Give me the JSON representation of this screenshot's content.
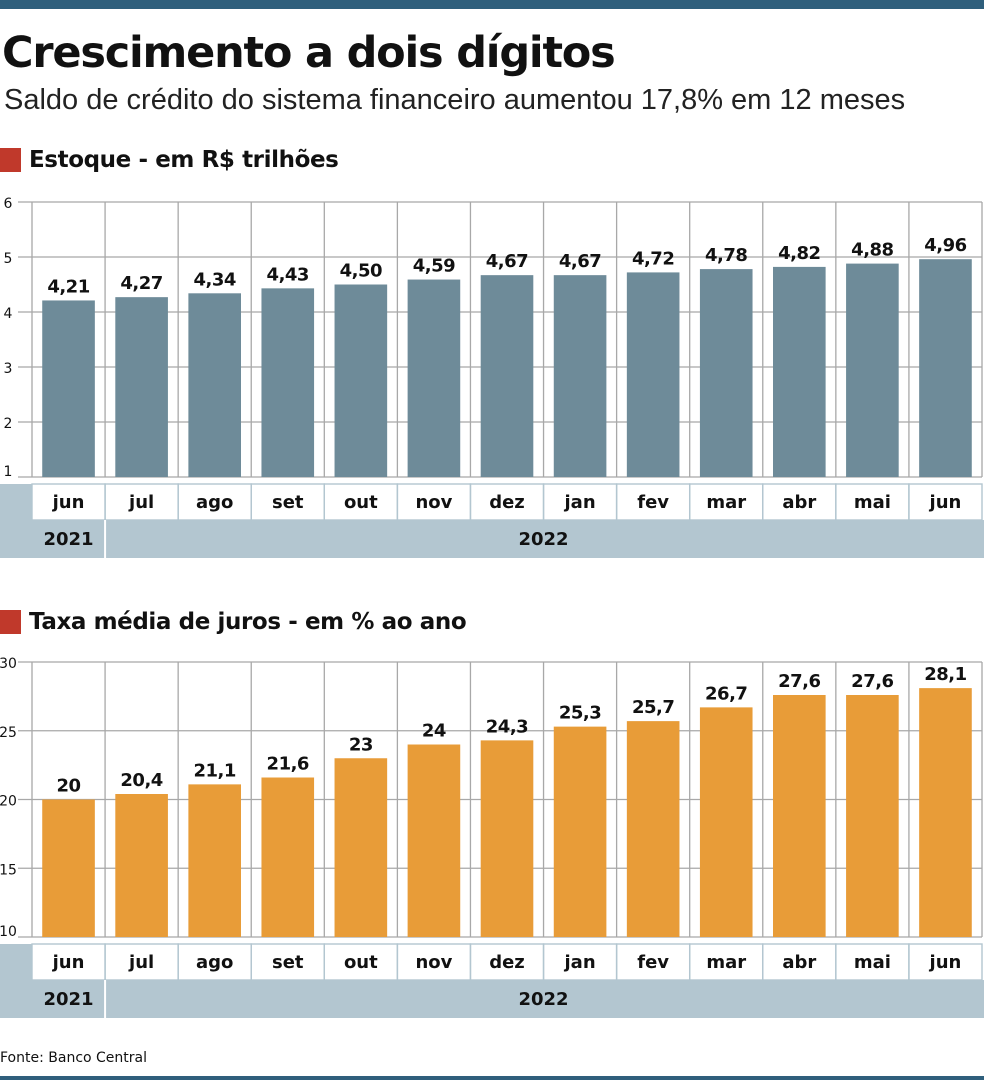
{
  "title": "Crescimento a dois dígitos",
  "subtitle": "Saldo de crédito do sistema financeiro aumentou 17,8% em 12 meses",
  "source": "Fonte: Banco Central",
  "colors": {
    "rule": "#2f5f7c",
    "marker": "#c0392b",
    "stock_bar": "#6e8b99",
    "rate_bar": "#e89c38",
    "axis_band": "#b3c6d0"
  },
  "chart_data": [
    {
      "type": "bar",
      "title": "Estoque - em R$ trilhões",
      "categories": [
        "jun",
        "jul",
        "ago",
        "set",
        "out",
        "nov",
        "dez",
        "jan",
        "fev",
        "mar",
        "abr",
        "mai",
        "jun"
      ],
      "years": [
        {
          "label": "2021",
          "from": 0,
          "to": 0
        },
        {
          "label": "2022",
          "from": 1,
          "to": 12
        }
      ],
      "values": [
        4.21,
        4.27,
        4.34,
        4.43,
        4.5,
        4.59,
        4.67,
        4.67,
        4.72,
        4.78,
        4.82,
        4.88,
        4.96
      ],
      "value_labels": [
        "4,21",
        "4,27",
        "4,34",
        "4,43",
        "4,50",
        "4,59",
        "4,67",
        "4,67",
        "4,72",
        "4,78",
        "4,82",
        "4,88",
        "4,96"
      ],
      "yticks": [
        1,
        2,
        3,
        4,
        5,
        6
      ],
      "ylim": [
        1,
        6
      ],
      "grid": true
    },
    {
      "type": "bar",
      "title": "Taxa média de juros - em % ao ano",
      "categories": [
        "jun",
        "jul",
        "ago",
        "set",
        "out",
        "nov",
        "dez",
        "jan",
        "fev",
        "mar",
        "abr",
        "mai",
        "jun"
      ],
      "years": [
        {
          "label": "2021",
          "from": 0,
          "to": 0
        },
        {
          "label": "2022",
          "from": 1,
          "to": 12
        }
      ],
      "values": [
        20,
        20.4,
        21.1,
        21.6,
        23,
        24,
        24.3,
        25.3,
        25.7,
        26.7,
        27.6,
        27.6,
        28.1
      ],
      "value_labels": [
        "20",
        "20,4",
        "21,1",
        "21,6",
        "23",
        "24",
        "24,3",
        "25,3",
        "25,7",
        "26,7",
        "27,6",
        "27,6",
        "28,1"
      ],
      "yticks": [
        10,
        15,
        20,
        25,
        30
      ],
      "ylim": [
        10,
        30
      ],
      "grid": true
    }
  ]
}
